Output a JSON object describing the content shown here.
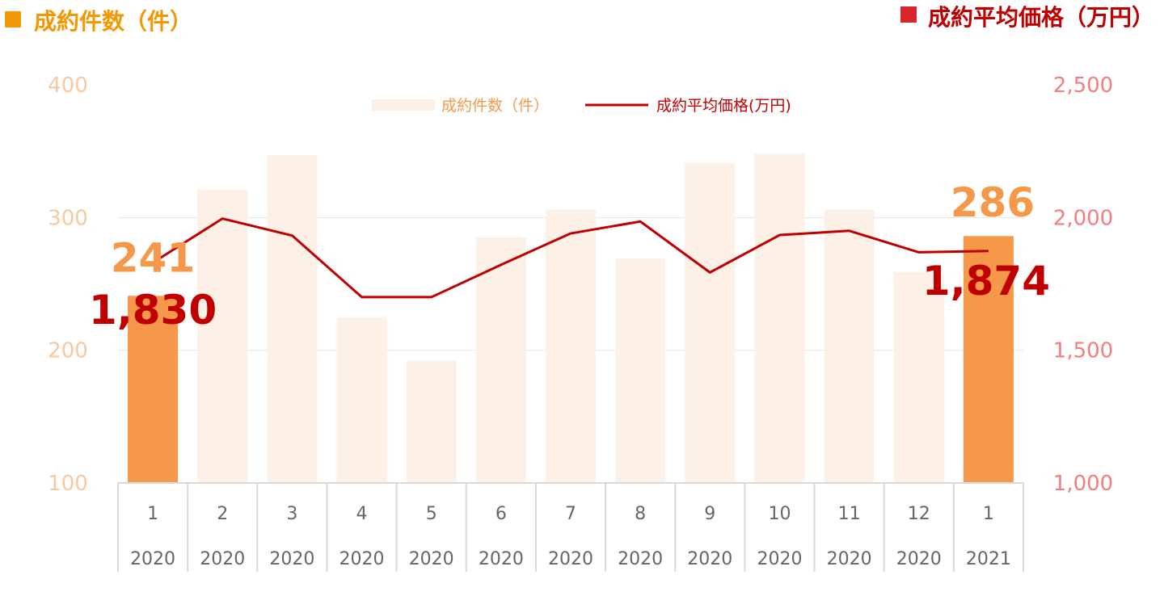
{
  "chart_data": {
    "type": "bar-line-combo",
    "title_left": "成約件数（件）",
    "title_right": "成約平均価格（万円）",
    "legend": {
      "bar_label": "成約件数（件）",
      "line_label": "成約平均価格(万円)",
      "placement": "top-center"
    },
    "categories": [
      {
        "month": "1",
        "year": "2020"
      },
      {
        "month": "2",
        "year": "2020"
      },
      {
        "month": "3",
        "year": "2020"
      },
      {
        "month": "4",
        "year": "2020"
      },
      {
        "month": "5",
        "year": "2020"
      },
      {
        "month": "6",
        "year": "2020"
      },
      {
        "month": "7",
        "year": "2020"
      },
      {
        "month": "8",
        "year": "2020"
      },
      {
        "month": "9",
        "year": "2020"
      },
      {
        "month": "10",
        "year": "2020"
      },
      {
        "month": "11",
        "year": "2020"
      },
      {
        "month": "12",
        "year": "2020"
      },
      {
        "month": "1",
        "year": "2021"
      }
    ],
    "bars": {
      "name": "成約件数（件）",
      "values": [
        241,
        321,
        347,
        225,
        192,
        285,
        306,
        269,
        341,
        348,
        306,
        259,
        286
      ],
      "highlight_indices": [
        0,
        12
      ]
    },
    "line": {
      "name": "成約平均価格(万円)",
      "values": [
        1830,
        1996,
        1932,
        1700,
        1700,
        1822,
        1940,
        1985,
        1793,
        1934,
        1950,
        1869,
        1874
      ]
    },
    "y_left": {
      "min": 100,
      "max": 400,
      "ticks": [
        "100",
        "200",
        "300",
        "400"
      ],
      "tick_values": [
        100,
        200,
        300,
        400
      ]
    },
    "y_right": {
      "min": 1000,
      "max": 2500,
      "ticks": [
        "1,000",
        "1,500",
        "2,000",
        "2,500"
      ],
      "tick_values": [
        1000,
        1500,
        2000,
        2500
      ]
    },
    "annotations": {
      "first_bar_label": "241",
      "first_line_label": "1,830",
      "last_bar_label": "286",
      "last_line_label": "1,874"
    },
    "grid": true,
    "colors": {
      "bar_highlight": "#f5984a",
      "bar_normal": "#fdf1e7",
      "line": "#c00000",
      "left_axis_text": "#f7c9a1",
      "right_axis_text": "#f08080",
      "title_left_marker": "#f39800",
      "title_left_text": "#f39800",
      "title_right_marker": "#d9262a",
      "title_right_text": "#c00000",
      "bar_label_color": "#f5984a",
      "line_label_color": "#c00000",
      "legend_bar_text": "#f5984a",
      "legend_line_text": "#c00000",
      "grid": "#e6e6e6",
      "axis_table_border": "#d9d9d9"
    }
  }
}
